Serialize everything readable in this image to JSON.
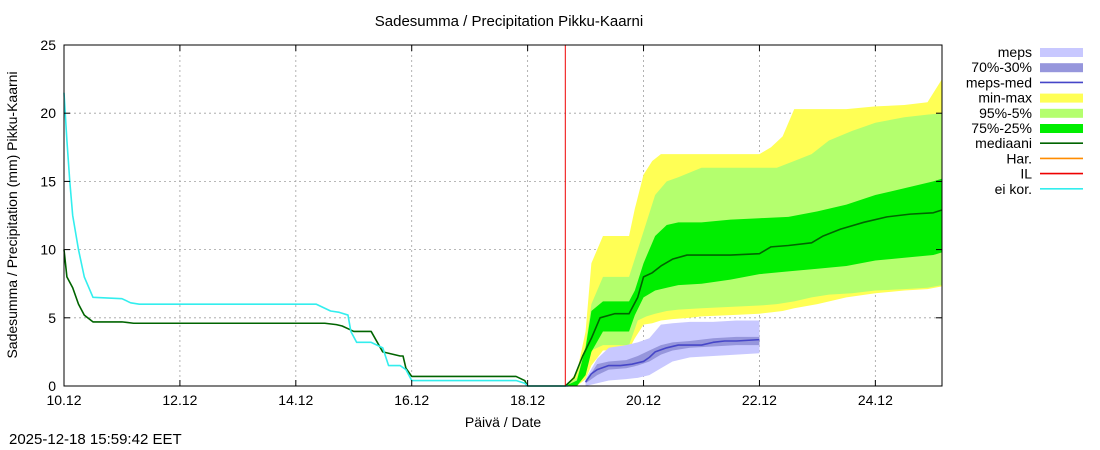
{
  "chart_data": {
    "type": "area",
    "title": "Sadesumma / Precipitation  Pikku-Kaarni",
    "xlabel": "Päivä / Date",
    "ylabel": "Sadesumma / Precipitation (mm)  Pikku-Kaarni",
    "xlim": [
      10.0,
      25.15
    ],
    "ylim": [
      0,
      25
    ],
    "x_ticks": [
      10,
      12,
      14,
      16,
      18,
      20,
      22,
      24
    ],
    "x_tick_labels": [
      "10.12",
      "12.12",
      "14.12",
      "16.12",
      "18.12",
      "20.12",
      "22.12",
      "24.12"
    ],
    "y_ticks": [
      0,
      5,
      10,
      15,
      20,
      25
    ],
    "y_tick_labels": [
      "0",
      "5",
      "10",
      "15",
      "20",
      "25"
    ],
    "grid": true,
    "forecast_start_x": 18.65,
    "legend_position": "right",
    "legend": [
      {
        "label": "meps",
        "color": "#c8c8ff",
        "kind": "band"
      },
      {
        "label": "70%-30%",
        "color": "#9696dc",
        "kind": "band"
      },
      {
        "label": "meps-med",
        "color": "#4646c8",
        "kind": "line"
      },
      {
        "label": "min-max",
        "color": "#ffff55",
        "kind": "band"
      },
      {
        "label": "95%-5%",
        "color": "#b4ff6e",
        "kind": "band"
      },
      {
        "label": "75%-25%",
        "color": "#00ee00",
        "kind": "band"
      },
      {
        "label": "mediaani",
        "color": "#006400",
        "kind": "line"
      },
      {
        "label": "Har.",
        "color": "#ff8c00",
        "kind": "line"
      },
      {
        "label": "IL",
        "color": "#ee0000",
        "kind": "line"
      },
      {
        "label": "ei kor.",
        "color": "#33eeee",
        "kind": "line"
      }
    ],
    "series": [
      {
        "name": "min-max",
        "type": "band",
        "color": "#ffff55",
        "x": [
          18.65,
          18.85,
          19.0,
          19.1,
          19.3,
          19.75,
          19.85,
          20.0,
          20.15,
          20.3,
          20.5,
          20.8,
          21.0,
          21.5,
          22.0,
          22.2,
          22.4,
          22.6,
          23.0,
          23.5,
          24.0,
          24.5,
          24.9,
          25.15
        ],
        "low": [
          0,
          0,
          0.5,
          1.5,
          2.6,
          2.7,
          3.5,
          4.5,
          4.6,
          4.8,
          4.9,
          5.0,
          5.1,
          5.2,
          5.3,
          5.4,
          5.5,
          5.7,
          6.0,
          6.5,
          6.8,
          7.0,
          7.1,
          7.3
        ],
        "high": [
          0,
          1.0,
          4.0,
          9.0,
          11.0,
          11.0,
          13.0,
          15.5,
          16.5,
          17.0,
          17.0,
          17.0,
          17.0,
          17.0,
          17.0,
          17.5,
          18.3,
          20.3,
          20.3,
          20.3,
          20.5,
          20.6,
          20.8,
          22.5
        ]
      },
      {
        "name": "95%-5%",
        "type": "band",
        "color": "#b4ff6e",
        "x": [
          18.65,
          18.85,
          19.0,
          19.1,
          19.3,
          19.75,
          19.9,
          20.05,
          20.2,
          20.4,
          20.6,
          21.0,
          21.5,
          22.0,
          22.3,
          22.6,
          22.9,
          23.2,
          23.6,
          24.0,
          24.5,
          24.9,
          25.15
        ],
        "low": [
          0,
          0,
          1.0,
          2.6,
          3.0,
          3.0,
          4.8,
          5.1,
          5.3,
          5.5,
          5.6,
          5.7,
          5.8,
          5.9,
          6.0,
          6.2,
          6.5,
          6.7,
          6.8,
          7.0,
          7.1,
          7.2,
          7.4
        ],
        "high": [
          0,
          0.6,
          3.0,
          6.0,
          8.0,
          8.0,
          10.0,
          12.0,
          14.0,
          15.0,
          15.3,
          16.0,
          16.0,
          16.0,
          16.0,
          16.5,
          17.0,
          18.0,
          18.7,
          19.3,
          19.7,
          19.9,
          20.0
        ]
      },
      {
        "name": "75%-25%",
        "type": "band",
        "color": "#00ee00",
        "x": [
          18.65,
          18.85,
          19.0,
          19.1,
          19.3,
          19.75,
          19.85,
          20.0,
          20.2,
          20.4,
          20.6,
          21.0,
          21.5,
          22.0,
          22.5,
          23.0,
          23.5,
          24.0,
          24.5,
          25.0,
          25.15
        ],
        "low": [
          0,
          0,
          0.8,
          2.5,
          4.0,
          4.0,
          5.2,
          6.5,
          7.0,
          7.2,
          7.4,
          7.5,
          7.8,
          8.2,
          8.4,
          8.6,
          8.8,
          9.2,
          9.4,
          9.6,
          9.8
        ],
        "high": [
          0,
          0.4,
          2.8,
          5.5,
          6.2,
          6.2,
          7.0,
          9.0,
          11.0,
          11.8,
          12.0,
          12.0,
          12.2,
          12.3,
          12.4,
          12.8,
          13.3,
          14.0,
          14.5,
          15.0,
          15.2
        ]
      },
      {
        "name": "meps",
        "type": "band",
        "color": "#c8c8ff",
        "x": [
          19.0,
          19.2,
          19.4,
          19.7,
          19.9,
          20.1,
          20.3,
          20.5,
          20.8,
          21.2,
          21.6,
          22.0
        ],
        "low": [
          0,
          0.2,
          0.4,
          0.5,
          0.6,
          0.8,
          1.3,
          1.8,
          2.1,
          2.2,
          2.3,
          2.4
        ],
        "high": [
          0.5,
          2.0,
          2.8,
          3.0,
          3.2,
          3.5,
          4.5,
          4.6,
          4.7,
          4.7,
          4.8,
          4.8
        ]
      },
      {
        "name": "70%-30%",
        "type": "band",
        "color": "#9696dc",
        "x": [
          19.0,
          19.2,
          19.4,
          19.7,
          19.9,
          20.1,
          20.3,
          20.5,
          20.8,
          21.2,
          21.6,
          22.0
        ],
        "low": [
          0.2,
          0.8,
          1.2,
          1.3,
          1.5,
          1.8,
          2.3,
          2.6,
          2.8,
          2.9,
          3.0,
          3.0
        ],
        "high": [
          0.3,
          1.6,
          1.8,
          1.9,
          2.2,
          2.6,
          3.0,
          3.2,
          3.3,
          3.5,
          3.6,
          3.6
        ]
      },
      {
        "name": "meps-med",
        "type": "line",
        "color": "#4646c8",
        "x": [
          19.0,
          19.1,
          19.2,
          19.4,
          19.6,
          19.8,
          20.0,
          20.1,
          20.2,
          20.4,
          20.6,
          21.0,
          21.2,
          21.4,
          21.6,
          22.0
        ],
        "y": [
          0.3,
          0.9,
          1.2,
          1.5,
          1.5,
          1.6,
          1.8,
          2.1,
          2.5,
          2.8,
          3.0,
          3.0,
          3.2,
          3.3,
          3.3,
          3.4
        ]
      },
      {
        "name": "mediaani",
        "type": "line",
        "color": "#006400",
        "x": [
          10.0,
          10.05,
          10.15,
          10.25,
          10.35,
          10.5,
          11.0,
          11.2,
          12.0,
          13.0,
          14.0,
          14.5,
          14.7,
          14.8,
          14.9,
          15.0,
          15.1,
          15.2,
          15.3,
          15.5,
          15.7,
          15.8,
          15.85,
          15.9,
          16.0,
          17.0,
          17.8,
          17.95,
          18.0,
          18.6,
          18.65,
          18.8,
          18.95,
          19.1,
          19.25,
          19.5,
          19.75,
          19.9,
          20.0,
          20.15,
          20.3,
          20.5,
          20.75,
          21.0,
          21.5,
          22.0,
          22.2,
          22.5,
          22.9,
          23.1,
          23.4,
          23.8,
          24.2,
          24.6,
          25.0,
          25.15
        ],
        "y": [
          10.0,
          8.0,
          7.2,
          6.0,
          5.2,
          4.7,
          4.7,
          4.6,
          4.6,
          4.6,
          4.6,
          4.6,
          4.5,
          4.4,
          4.2,
          4.0,
          4.0,
          4.0,
          4.0,
          2.5,
          2.3,
          2.2,
          2.2,
          1.3,
          0.7,
          0.7,
          0.7,
          0.4,
          0,
          0,
          0,
          0.6,
          2.2,
          3.5,
          5.0,
          5.3,
          5.3,
          6.5,
          8.0,
          8.3,
          8.8,
          9.3,
          9.6,
          9.6,
          9.6,
          9.7,
          10.2,
          10.3,
          10.5,
          11.0,
          11.5,
          12.0,
          12.4,
          12.6,
          12.7,
          12.9
        ]
      },
      {
        "name": "ei kor.",
        "type": "line",
        "color": "#33eeee",
        "x": [
          10.0,
          10.05,
          10.1,
          10.15,
          10.25,
          10.35,
          10.5,
          11.0,
          11.15,
          11.3,
          12.0,
          13.0,
          14.0,
          14.35,
          14.45,
          14.6,
          14.75,
          14.9,
          14.95,
          15.05,
          15.3,
          15.5,
          15.6,
          15.8,
          15.9,
          16.0,
          17.0,
          17.8,
          17.95,
          18.0,
          18.6,
          18.7
        ],
        "y": [
          21.5,
          18.0,
          15.0,
          12.5,
          10.0,
          8.0,
          6.5,
          6.4,
          6.1,
          6.0,
          6.0,
          6.0,
          6.0,
          6.0,
          5.8,
          5.5,
          5.4,
          5.2,
          4.0,
          3.2,
          3.2,
          2.8,
          1.5,
          1.5,
          1.2,
          0.4,
          0.4,
          0.4,
          0.2,
          0,
          0,
          0
        ]
      }
    ]
  },
  "footer": {
    "timestamp": "2025-12-18 15:59:42 EET"
  }
}
